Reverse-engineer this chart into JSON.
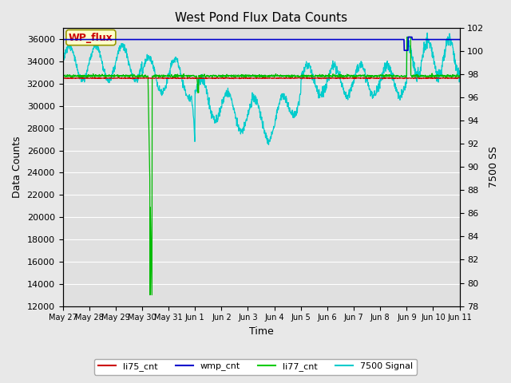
{
  "title": "West Pond Flux Data Counts",
  "xlabel": "Time",
  "ylabel_left": "Data Counts",
  "ylabel_right": "7500 SS",
  "ylim_left": [
    12000,
    37000
  ],
  "ylim_right": [
    78,
    102
  ],
  "yticks_left": [
    12000,
    14000,
    16000,
    18000,
    20000,
    22000,
    24000,
    26000,
    28000,
    30000,
    32000,
    34000,
    36000
  ],
  "yticks_right": [
    78,
    80,
    82,
    84,
    86,
    88,
    90,
    92,
    94,
    96,
    98,
    100,
    102
  ],
  "xtick_labels": [
    "May 27",
    "May 28",
    "May 29",
    "May 30",
    "May 31",
    "Jun 1",
    "Jun 2",
    "Jun 3",
    "Jun 4",
    "Jun 5",
    "Jun 6",
    "Jun 7",
    "Jun 8",
    "Jun 9",
    "Jun 10",
    "Jun 11"
  ],
  "bg_color": "#e0e0e0",
  "grid_color": "#ffffff",
  "fig_bg_color": "#e8e8e8",
  "wp_flux_label": "WP_flux",
  "wp_flux_box_bg": "#ffffcc",
  "wp_flux_box_edge": "#999900",
  "wp_flux_text_color": "#cc0000",
  "legend_labels": [
    "li75_cnt",
    "wmp_cnt",
    "li77_cnt",
    "7500 Signal"
  ],
  "legend_colors": [
    "#cc0000",
    "#0000cc",
    "#00cc00",
    "#00cccc"
  ],
  "line_li75_color": "#cc0000",
  "line_wmp_color": "#0000cc",
  "line_li77_color": "#00bb00",
  "line_7500_color": "#00cccc",
  "n_points": 1500
}
